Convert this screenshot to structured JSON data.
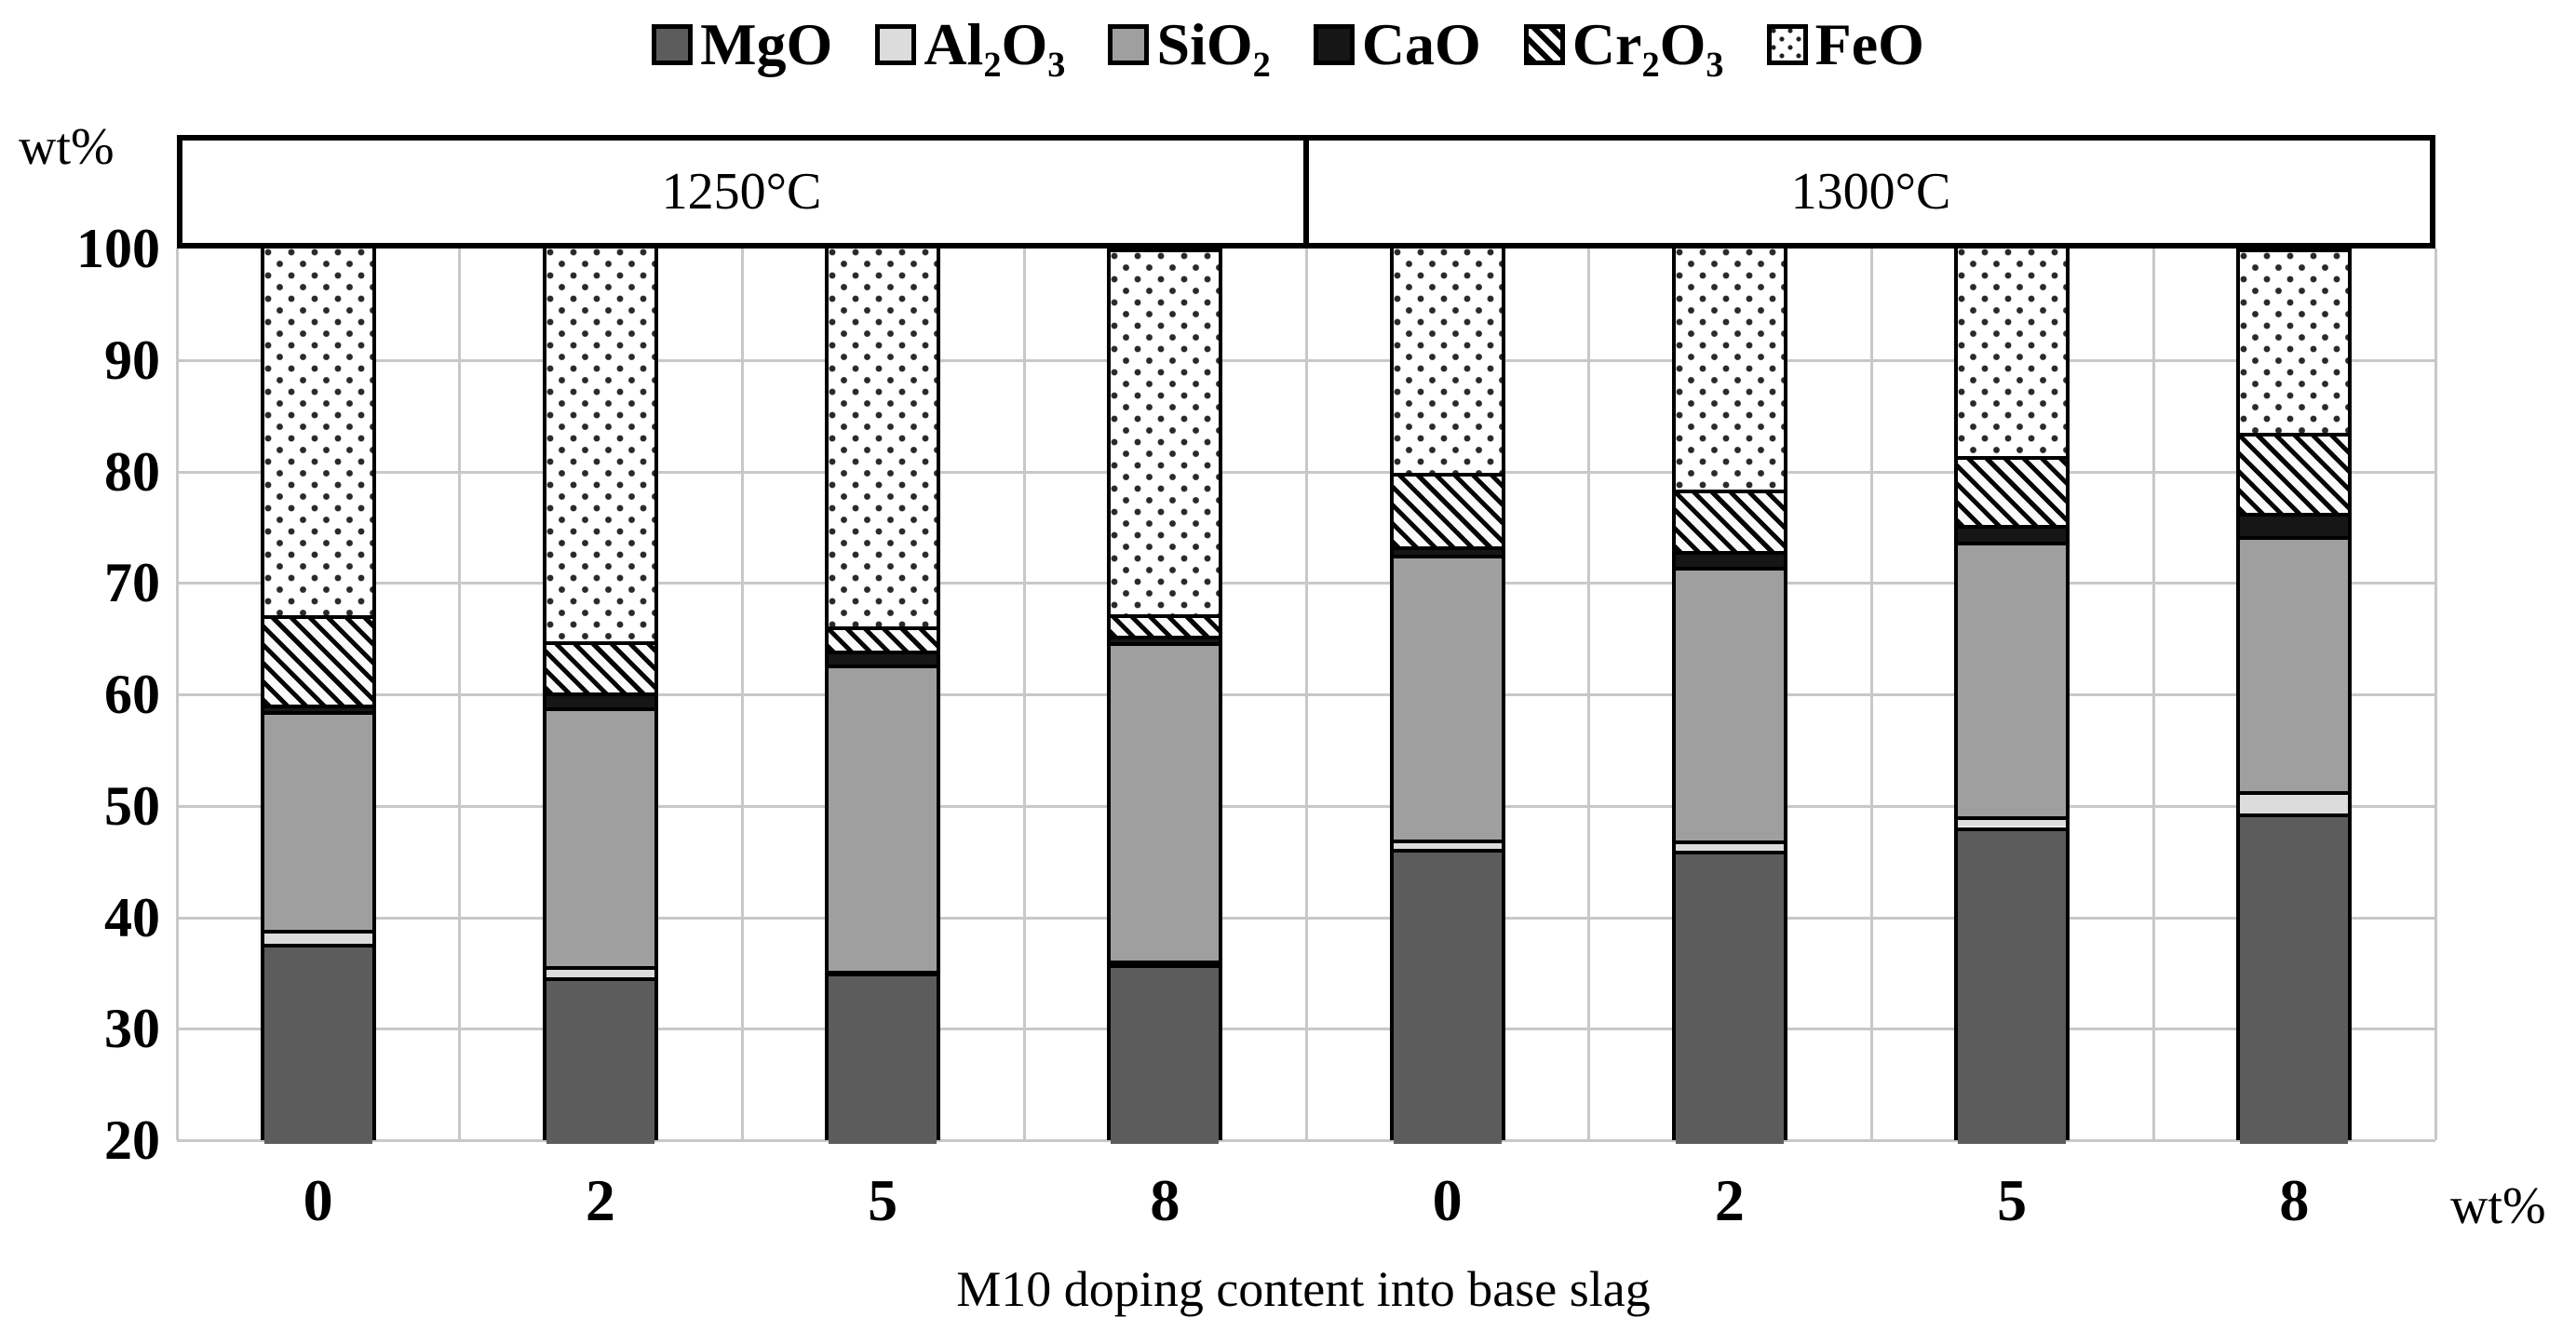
{
  "page": {
    "background": "#ffffff"
  },
  "axes": {
    "y_unit_label": "wt%",
    "x_unit_label": "wt%"
  },
  "chart_data": {
    "type": "bar",
    "stacked": true,
    "orientation": "vertical",
    "grid": true,
    "legend_position": "top",
    "groups": [
      {
        "label": "1250°C"
      },
      {
        "label": "1300°C"
      }
    ],
    "categories": [
      "0",
      "2",
      "5",
      "8",
      "0",
      "2",
      "5",
      "8"
    ],
    "series": [
      {
        "name": "MgO",
        "swatch": "solid",
        "color": "#5c5c5c",
        "values": [
          37.6,
          34.6,
          35.0,
          35.8,
          46.1,
          46.0,
          48.1,
          49.3
        ]
      },
      {
        "name": "Al₂O₃",
        "swatch": "solid",
        "color": "#dcdcdc",
        "values": [
          1.3,
          1.0,
          0.2,
          0.3,
          0.9,
          0.9,
          1.0,
          2.0
        ]
      },
      {
        "name": "SiO₂",
        "swatch": "solid",
        "color": "#9f9f9f",
        "values": [
          19.6,
          23.2,
          27.5,
          28.6,
          25.5,
          24.5,
          24.6,
          22.9
        ]
      },
      {
        "name": "CaO",
        "swatch": "solid",
        "color": "#161616",
        "values": [
          0.6,
          1.4,
          1.2,
          0.6,
          0.8,
          1.5,
          1.5,
          2.1
        ]
      },
      {
        "name": "Cr₂O₃",
        "swatch": "hatch",
        "color": "#000000",
        "values": [
          8.0,
          4.6,
          2.2,
          1.9,
          6.6,
          5.5,
          6.2,
          7.2
        ]
      },
      {
        "name": "FeO",
        "swatch": "dots",
        "color": "#2a2a2a",
        "values": [
          32.9,
          35.2,
          33.9,
          32.8,
          20.1,
          21.6,
          18.6,
          16.5
        ]
      }
    ],
    "ylim": [
      20,
      100
    ],
    "yticks": [
      100,
      90,
      80,
      70,
      60,
      50,
      40,
      30,
      20
    ],
    "ylabel": "wt%",
    "xlabel": "M10 doping content into base slag",
    "gridline_color": "#c8c8c8"
  }
}
